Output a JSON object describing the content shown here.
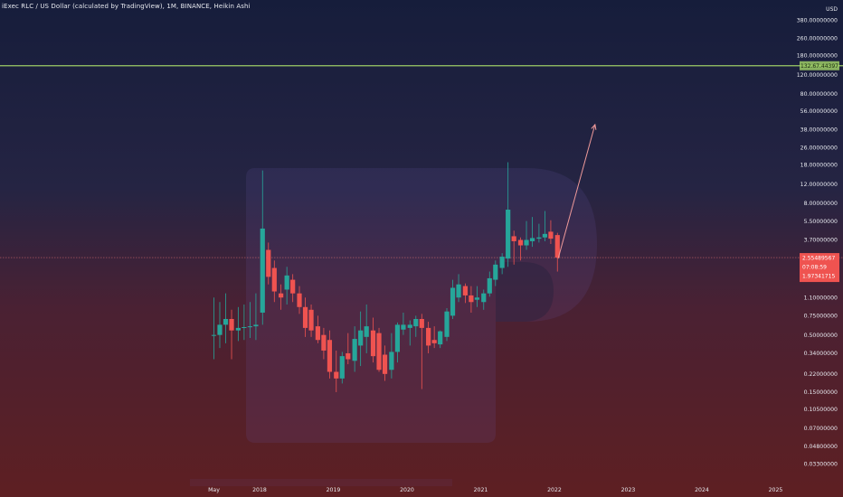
{
  "chart_data": {
    "type": "candlestick",
    "title": "iExec RLC / US Dollar (calculated by TradingView), 1M, BINANCE, Heikin Ashi",
    "currency": "USD",
    "scale": "log",
    "y_ticks": [
      "580.00000000",
      "380.00000000",
      "260.00000000",
      "180.00000000",
      "120.00000000",
      "80.00000000",
      "56.00000000",
      "38.00000000",
      "26.00000000",
      "18.00000000",
      "12.00000000",
      "8.00000000",
      "5.50000000",
      "3.70000000",
      "2.50000000",
      "1.60000000",
      "1.10000000",
      "0.75000000",
      "0.50000000",
      "0.34000000",
      "0.22000000",
      "0.15000000",
      "0.10500000",
      "0.07000000",
      "0.04800000",
      "0.03300000"
    ],
    "x_ticks": [
      "May",
      "2018",
      "2019",
      "2020",
      "2021",
      "2022",
      "2023",
      "2024",
      "2025"
    ],
    "colors": {
      "up": "#26a69a",
      "down": "#ef5350",
      "resistance": "#9ccc65",
      "projection": "#ef9a9a",
      "current_price_line": "#e57373",
      "price_label_bg": "#ef5350"
    },
    "resistance_line": {
      "price": 145.0,
      "label": "132.67.44397"
    },
    "current_price": {
      "price": 2.55,
      "label_lines": [
        "2.55489567",
        "07:08:59",
        "1.97341715"
      ]
    },
    "projection": {
      "from": {
        "x": 2022.05,
        "price": 2.5
      },
      "to": {
        "x": 2022.55,
        "price": 42.0
      }
    },
    "candles": [
      {
        "t": 2017.38,
        "o": 0.5,
        "h": 1.1,
        "l": 0.3,
        "c": 0.5
      },
      {
        "t": 2017.46,
        "o": 0.5,
        "h": 1.0,
        "l": 0.38,
        "c": 0.62
      },
      {
        "t": 2017.54,
        "o": 0.62,
        "h": 1.2,
        "l": 0.42,
        "c": 0.7
      },
      {
        "t": 2017.62,
        "o": 0.7,
        "h": 0.85,
        "l": 0.3,
        "c": 0.55
      },
      {
        "t": 2017.71,
        "o": 0.55,
        "h": 0.9,
        "l": 0.44,
        "c": 0.58
      },
      {
        "t": 2017.79,
        "o": 0.58,
        "h": 0.95,
        "l": 0.45,
        "c": 0.59
      },
      {
        "t": 2017.87,
        "o": 0.59,
        "h": 1.0,
        "l": 0.47,
        "c": 0.6
      },
      {
        "t": 2017.95,
        "o": 0.6,
        "h": 1.2,
        "l": 0.45,
        "c": 0.62
      },
      {
        "t": 2018.04,
        "o": 0.8,
        "h": 16.0,
        "l": 0.62,
        "c": 4.7
      },
      {
        "t": 2018.12,
        "o": 3.0,
        "h": 3.5,
        "l": 1.45,
        "c": 1.7
      },
      {
        "t": 2018.2,
        "o": 2.05,
        "h": 2.4,
        "l": 1.0,
        "c": 1.25
      },
      {
        "t": 2018.29,
        "o": 1.2,
        "h": 1.45,
        "l": 0.85,
        "c": 1.1
      },
      {
        "t": 2018.37,
        "o": 1.3,
        "h": 2.1,
        "l": 0.95,
        "c": 1.75
      },
      {
        "t": 2018.45,
        "o": 1.6,
        "h": 1.8,
        "l": 1.0,
        "c": 1.2
      },
      {
        "t": 2018.54,
        "o": 1.2,
        "h": 1.4,
        "l": 0.78,
        "c": 0.9
      },
      {
        "t": 2018.62,
        "o": 0.9,
        "h": 1.1,
        "l": 0.48,
        "c": 0.58
      },
      {
        "t": 2018.7,
        "o": 0.85,
        "h": 0.95,
        "l": 0.48,
        "c": 0.55
      },
      {
        "t": 2018.79,
        "o": 0.6,
        "h": 0.75,
        "l": 0.42,
        "c": 0.45
      },
      {
        "t": 2018.87,
        "o": 0.5,
        "h": 0.58,
        "l": 0.3,
        "c": 0.36
      },
      {
        "t": 2018.95,
        "o": 0.45,
        "h": 0.55,
        "l": 0.2,
        "c": 0.23
      },
      {
        "t": 2019.04,
        "o": 0.23,
        "h": 0.36,
        "l": 0.15,
        "c": 0.2
      },
      {
        "t": 2019.12,
        "o": 0.2,
        "h": 0.35,
        "l": 0.18,
        "c": 0.32
      },
      {
        "t": 2019.2,
        "o": 0.34,
        "h": 0.52,
        "l": 0.27,
        "c": 0.3
      },
      {
        "t": 2019.29,
        "o": 0.29,
        "h": 0.6,
        "l": 0.23,
        "c": 0.46
      },
      {
        "t": 2019.37,
        "o": 0.4,
        "h": 0.82,
        "l": 0.26,
        "c": 0.55
      },
      {
        "t": 2019.45,
        "o": 0.48,
        "h": 0.95,
        "l": 0.34,
        "c": 0.6
      },
      {
        "t": 2019.54,
        "o": 0.55,
        "h": 0.72,
        "l": 0.28,
        "c": 0.32
      },
      {
        "t": 2019.62,
        "o": 0.52,
        "h": 0.58,
        "l": 0.23,
        "c": 0.24
      },
      {
        "t": 2019.7,
        "o": 0.33,
        "h": 0.4,
        "l": 0.19,
        "c": 0.22
      },
      {
        "t": 2019.79,
        "o": 0.24,
        "h": 0.52,
        "l": 0.2,
        "c": 0.35
      },
      {
        "t": 2019.87,
        "o": 0.35,
        "h": 0.65,
        "l": 0.28,
        "c": 0.62
      },
      {
        "t": 2019.95,
        "o": 0.56,
        "h": 0.8,
        "l": 0.5,
        "c": 0.62
      },
      {
        "t": 2020.04,
        "o": 0.58,
        "h": 0.68,
        "l": 0.4,
        "c": 0.62
      },
      {
        "t": 2020.12,
        "o": 0.6,
        "h": 0.75,
        "l": 0.48,
        "c": 0.7
      },
      {
        "t": 2020.2,
        "o": 0.7,
        "h": 0.78,
        "l": 0.16,
        "c": 0.58
      },
      {
        "t": 2020.29,
        "o": 0.58,
        "h": 0.66,
        "l": 0.34,
        "c": 0.4
      },
      {
        "t": 2020.37,
        "o": 0.45,
        "h": 0.6,
        "l": 0.38,
        "c": 0.42
      },
      {
        "t": 2020.45,
        "o": 0.41,
        "h": 0.55,
        "l": 0.38,
        "c": 0.54
      },
      {
        "t": 2020.54,
        "o": 0.48,
        "h": 0.88,
        "l": 0.44,
        "c": 0.82
      },
      {
        "t": 2020.62,
        "o": 0.75,
        "h": 1.6,
        "l": 0.7,
        "c": 1.35
      },
      {
        "t": 2020.7,
        "o": 1.1,
        "h": 1.8,
        "l": 1.0,
        "c": 1.45
      },
      {
        "t": 2020.79,
        "o": 1.4,
        "h": 1.48,
        "l": 0.98,
        "c": 1.15
      },
      {
        "t": 2020.87,
        "o": 1.15,
        "h": 1.4,
        "l": 0.8,
        "c": 1.0
      },
      {
        "t": 2020.95,
        "o": 1.05,
        "h": 1.4,
        "l": 0.9,
        "c": 1.1
      },
      {
        "t": 2021.04,
        "o": 1.0,
        "h": 1.3,
        "l": 0.85,
        "c": 1.2
      },
      {
        "t": 2021.12,
        "o": 1.2,
        "h": 1.9,
        "l": 1.12,
        "c": 1.65
      },
      {
        "t": 2021.2,
        "o": 1.6,
        "h": 2.4,
        "l": 1.4,
        "c": 2.2
      },
      {
        "t": 2021.29,
        "o": 2.05,
        "h": 2.8,
        "l": 1.8,
        "c": 2.6
      },
      {
        "t": 2021.37,
        "o": 2.5,
        "h": 19.0,
        "l": 2.1,
        "c": 7.0
      },
      {
        "t": 2021.45,
        "o": 4.0,
        "h": 4.5,
        "l": 2.2,
        "c": 3.6
      },
      {
        "t": 2021.54,
        "o": 3.7,
        "h": 3.9,
        "l": 2.4,
        "c": 3.3
      },
      {
        "t": 2021.62,
        "o": 3.3,
        "h": 5.5,
        "l": 3.0,
        "c": 3.7
      },
      {
        "t": 2021.7,
        "o": 3.6,
        "h": 6.0,
        "l": 3.2,
        "c": 3.85
      },
      {
        "t": 2021.79,
        "o": 3.8,
        "h": 5.2,
        "l": 3.5,
        "c": 3.9
      },
      {
        "t": 2021.87,
        "o": 3.9,
        "h": 6.8,
        "l": 3.6,
        "c": 4.2
      },
      {
        "t": 2021.95,
        "o": 4.4,
        "h": 5.6,
        "l": 3.4,
        "c": 3.8
      },
      {
        "t": 2022.04,
        "o": 4.1,
        "h": 4.3,
        "l": 1.9,
        "c": 2.55
      }
    ]
  }
}
